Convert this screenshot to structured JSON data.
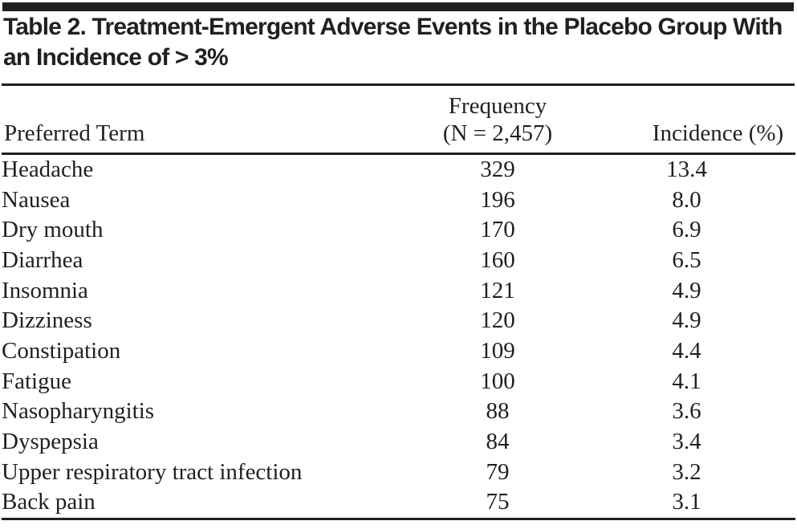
{
  "table": {
    "title": "Table 2. Treatment-Emergent Adverse Events in the Placebo Group With an Incidence of > 3%",
    "columns": {
      "term": "Preferred Term",
      "frequency_line1": "Frequency",
      "frequency_line2": "(N = 2,457)",
      "incidence": "Incidence (%)"
    },
    "rows": [
      {
        "term": "Headache",
        "frequency": "329",
        "incidence": "13.4"
      },
      {
        "term": "Nausea",
        "frequency": "196",
        "incidence": "8.0"
      },
      {
        "term": "Dry mouth",
        "frequency": "170",
        "incidence": "6.9"
      },
      {
        "term": "Diarrhea",
        "frequency": "160",
        "incidence": "6.5"
      },
      {
        "term": "Insomnia",
        "frequency": "121",
        "incidence": "4.9"
      },
      {
        "term": "Dizziness",
        "frequency": "120",
        "incidence": "4.9"
      },
      {
        "term": "Constipation",
        "frequency": "109",
        "incidence": "4.4"
      },
      {
        "term": "Fatigue",
        "frequency": "100",
        "incidence": "4.1"
      },
      {
        "term": "Nasopharyngitis",
        "frequency": "88",
        "incidence": "3.6"
      },
      {
        "term": "Dyspepsia",
        "frequency": "84",
        "incidence": "3.4"
      },
      {
        "term": "Upper respiratory tract infection",
        "frequency": "79",
        "incidence": "3.2"
      },
      {
        "term": "Back pain",
        "frequency": "75",
        "incidence": "3.1"
      }
    ],
    "colors": {
      "ink": "#231f20",
      "background": "#ffffff"
    }
  }
}
